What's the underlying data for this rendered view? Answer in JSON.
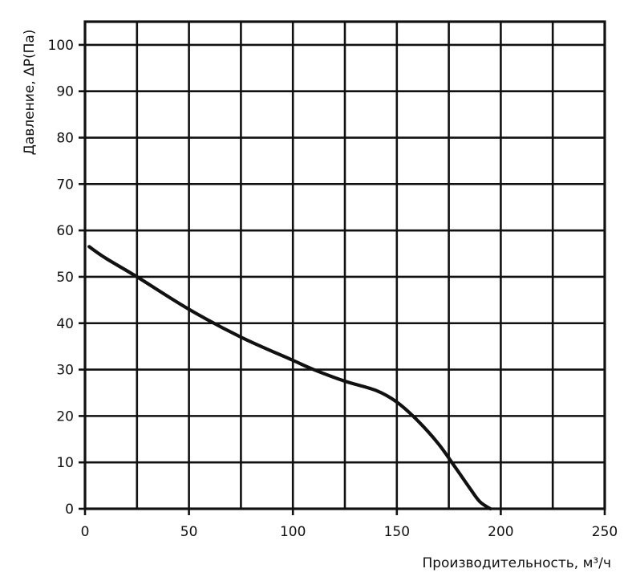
{
  "chart_data": {
    "type": "line",
    "title": "",
    "xlabel": "Производительность, м³/ч",
    "ylabel": "Давление, ΔP(Па)",
    "xlim": [
      0,
      250
    ],
    "ylim": [
      0,
      105
    ],
    "x_ticks": [
      0,
      50,
      100,
      150,
      200,
      250
    ],
    "y_ticks": [
      0,
      10,
      20,
      30,
      40,
      50,
      60,
      70,
      80,
      90,
      100
    ],
    "x_tick_labels": [
      "0",
      "50",
      "100",
      "150",
      "200",
      "250"
    ],
    "y_tick_labels": [
      "0",
      "10",
      "20",
      "30",
      "40",
      "50",
      "60",
      "70",
      "80",
      "90",
      "100"
    ],
    "grid": true,
    "legend": "none",
    "series": [
      {
        "color": "#111111",
        "x": [
          2,
          10,
          25,
          50,
          75,
          100,
          110,
          125,
          140,
          150,
          160,
          170,
          178,
          185,
          190,
          195
        ],
        "y": [
          56.5,
          54,
          50,
          43,
          37,
          32,
          30,
          27.5,
          25.5,
          23,
          19,
          14,
          9,
          4.5,
          1.5,
          0
        ]
      }
    ]
  }
}
